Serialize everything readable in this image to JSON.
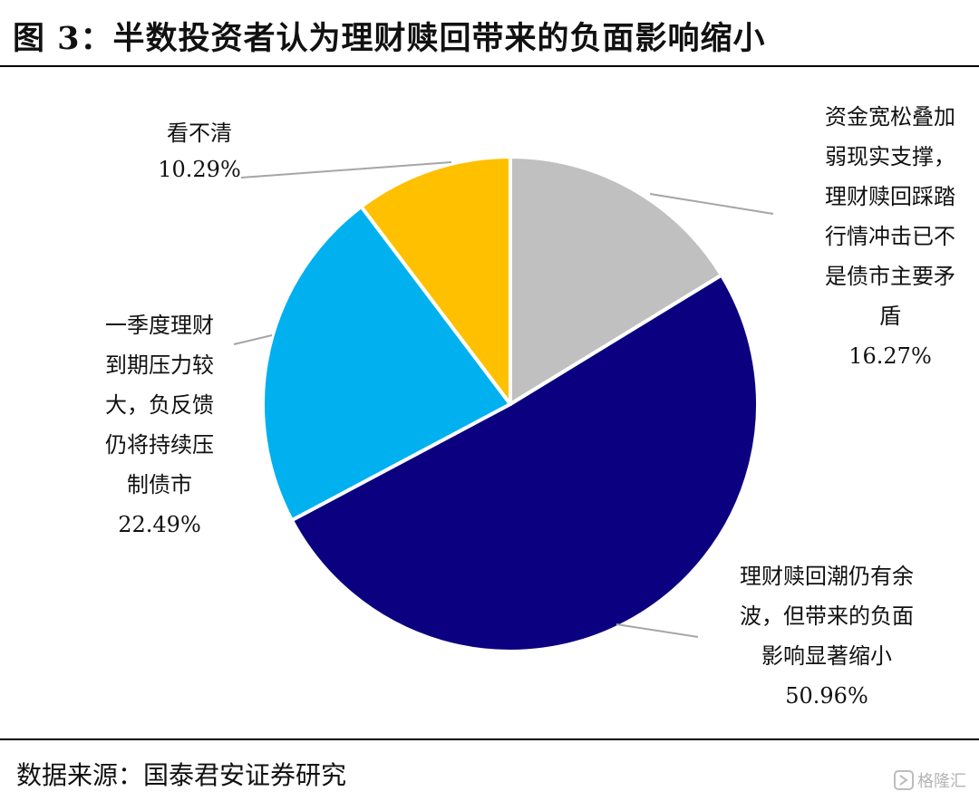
{
  "header": {
    "title": "图 3：半数投资者认为理财赎回带来的负面影响缩小"
  },
  "footer": {
    "source": "数据来源：国泰君安证券研究",
    "watermark": "格隆汇"
  },
  "chart_data": {
    "type": "pie",
    "start_angle_deg": 0,
    "direction": "clockwise",
    "slices": [
      {
        "label_lines": [
          "资金宽松叠加",
          "弱现实支撑，",
          "理财赎回踩踏",
          "行情冲击已不",
          "是债市主要矛",
          "盾"
        ],
        "value_text": "16.27%",
        "value": 16.27,
        "color": "#c0c0c0"
      },
      {
        "label_lines": [
          "理财赎回潮仍有余",
          "波，但带来的负面",
          "影响显著缩小"
        ],
        "value_text": "50.96%",
        "value": 50.96,
        "color": "#0b0080"
      },
      {
        "label_lines": [
          "一季度理财",
          "到期压力较",
          "大，负反馈",
          "仍将持续压",
          "制债市"
        ],
        "value_text": "22.49%",
        "value": 22.49,
        "color": "#00b0ef"
      },
      {
        "label_lines": [
          "看不清"
        ],
        "value_text": "10.29%",
        "value": 10.29,
        "color": "#ffc000"
      }
    ]
  }
}
